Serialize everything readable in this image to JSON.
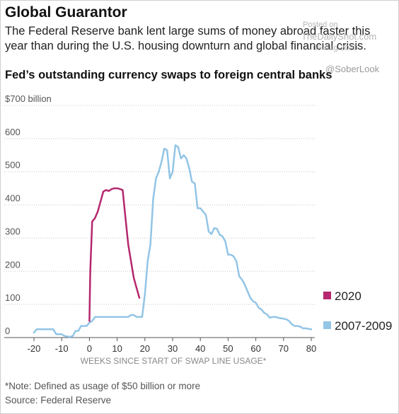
{
  "header": {
    "title": "Global Guarantor",
    "subtitle": "The Federal Reserve bank lent large sums of money abroad faster this year than during the U.S. housing downturn and global financial crisis."
  },
  "watermark": {
    "posted": "Posted on",
    "site": "TheDailyShot.com",
    "date": "05-Aug-2020",
    "handle": "@SoberLook"
  },
  "footer": {
    "note": "*Note: Defined as usage of $50 billion or more",
    "source": "Source: Federal Reserve"
  },
  "chart_data": {
    "type": "line",
    "title": "Fed’s outstanding currency swaps to foreign central banks",
    "xlabel": "WEEKS SINCE START OF SWAP LINE USAGE*",
    "ylabel": "",
    "xlim": [
      -20,
      80
    ],
    "ylim": [
      0,
      700
    ],
    "xticks": [
      -20,
      -10,
      0,
      10,
      20,
      30,
      40,
      50,
      60,
      70,
      80
    ],
    "yticks": [
      {
        "value": 0,
        "label": "0"
      },
      {
        "value": 100,
        "label": "100"
      },
      {
        "value": 200,
        "label": "200"
      },
      {
        "value": 300,
        "label": "300"
      },
      {
        "value": 400,
        "label": "400"
      },
      {
        "value": 500,
        "label": "500"
      },
      {
        "value": 600,
        "label": "600"
      },
      {
        "value": 700,
        "label": "$700 billion"
      }
    ],
    "grid": true,
    "legend_position": "right",
    "series": [
      {
        "name": "2007-2009",
        "color": "#92c5e6",
        "x": [
          -20,
          -19,
          -15,
          -13,
          -12,
          -11,
          -10,
          -9,
          -7,
          -6,
          -5,
          -4,
          -3,
          -2,
          -1,
          0,
          1,
          2,
          4,
          6,
          8,
          10,
          12,
          13,
          14,
          15,
          16,
          17,
          18,
          19,
          20,
          21,
          22,
          23,
          24,
          25,
          26,
          27,
          28,
          29,
          30,
          31,
          32,
          33,
          34,
          35,
          36,
          37,
          38,
          39,
          40,
          41,
          42,
          43,
          44,
          45,
          46,
          47,
          48,
          49,
          50,
          51,
          52,
          53,
          54,
          55,
          56,
          57,
          58,
          59,
          60,
          61,
          62,
          63,
          64,
          65,
          66,
          67,
          68,
          69,
          70,
          71,
          72,
          73,
          74,
          75,
          76,
          77,
          78,
          79,
          80
        ],
        "y": [
          15,
          25,
          25,
          25,
          10,
          10,
          10,
          5,
          2,
          5,
          20,
          20,
          35,
          35,
          35,
          45,
          50,
          62,
          62,
          62,
          62,
          62,
          62,
          62,
          62,
          68,
          68,
          62,
          62,
          62,
          130,
          230,
          280,
          420,
          480,
          500,
          530,
          570,
          565,
          480,
          500,
          580,
          575,
          540,
          550,
          540,
          510,
          470,
          465,
          390,
          390,
          380,
          370,
          320,
          312,
          330,
          328,
          310,
          305,
          290,
          250,
          250,
          245,
          230,
          185,
          175,
          160,
          140,
          120,
          110,
          105,
          90,
          85,
          75,
          70,
          60,
          62,
          62,
          60,
          58,
          57,
          55,
          50,
          40,
          35,
          35,
          33,
          28,
          28,
          26,
          25
        ]
      },
      {
        "name": "2020",
        "color": "#b5276e",
        "x": [
          0,
          0.3,
          1,
          2,
          3,
          4,
          5,
          6,
          7,
          8,
          9,
          10,
          11,
          12,
          13,
          14,
          15,
          16,
          17,
          18
        ],
        "y": [
          50,
          200,
          350,
          360,
          380,
          410,
          440,
          445,
          442,
          448,
          450,
          450,
          448,
          445,
          360,
          280,
          230,
          180,
          150,
          120
        ]
      }
    ]
  }
}
